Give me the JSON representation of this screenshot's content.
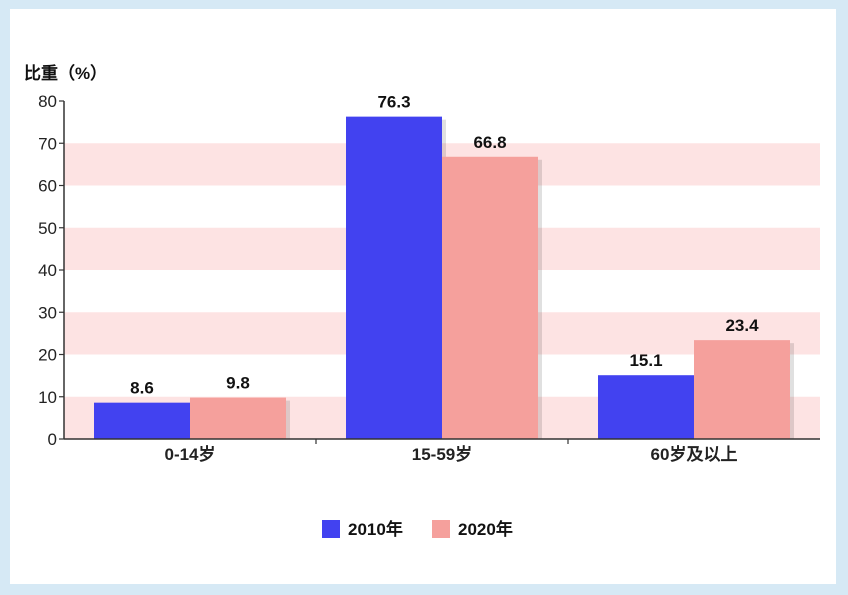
{
  "chart_data": {
    "type": "bar",
    "ylabel": "比重（%）",
    "xlabel": "",
    "ylim": [
      0,
      80
    ],
    "yticks": [
      0,
      10,
      20,
      30,
      40,
      50,
      60,
      70,
      80
    ],
    "categories": [
      "0-14岁",
      "15-59岁",
      "60岁及以上"
    ],
    "series": [
      {
        "name": "2010年",
        "values": [
          8.6,
          76.3,
          15.1
        ],
        "color": "#4242f0"
      },
      {
        "name": "2020年",
        "values": [
          9.8,
          66.8,
          23.4
        ],
        "color": "#f5a09c"
      }
    ],
    "band_color": "#fde3e3",
    "legend_position": "bottom-center",
    "grid": false
  }
}
